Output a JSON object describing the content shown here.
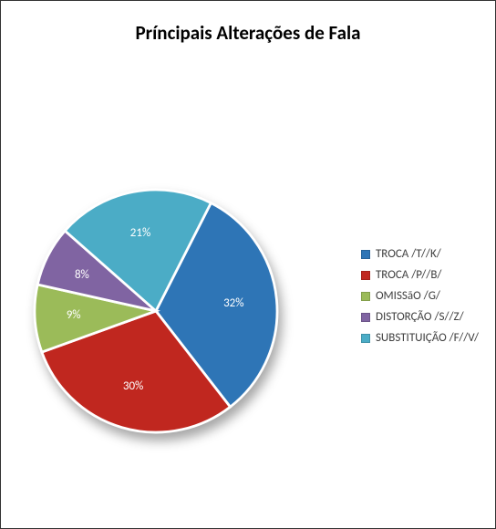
{
  "chart": {
    "type": "pie",
    "title": "Príncipais Alterações de Fala",
    "title_fontsize": 21,
    "title_color": "#000000",
    "background_color": "#ffffff",
    "series": [
      {
        "label": "TROCA /T//K/",
        "value": 32,
        "color": "#2e75b6",
        "label_color": "#ffffff"
      },
      {
        "label": "TROCA /P//B/",
        "value": 30,
        "color": "#c0271f",
        "label_color": "#ffffff"
      },
      {
        "label": "OMISSãO /G/",
        "value": 9,
        "color": "#9bbb59",
        "label_color": "#ffffff"
      },
      {
        "label": "DISTORÇÃO /S//Z/",
        "value": 8,
        "color": "#8064a2",
        "label_color": "#ffffff"
      },
      {
        "label": "SUBSTITUIÇÃO /F//V/",
        "value": 21,
        "color": "#4bacc6",
        "label_color": "#ffffff"
      }
    ],
    "label_suffix": "%",
    "label_fontsize": 13,
    "legend_fontsize": 13,
    "legend_marker_size": 10,
    "stroke_color": "#ffffff",
    "stroke_width": 2,
    "shadow": true,
    "start_angle_deg": -63
  }
}
